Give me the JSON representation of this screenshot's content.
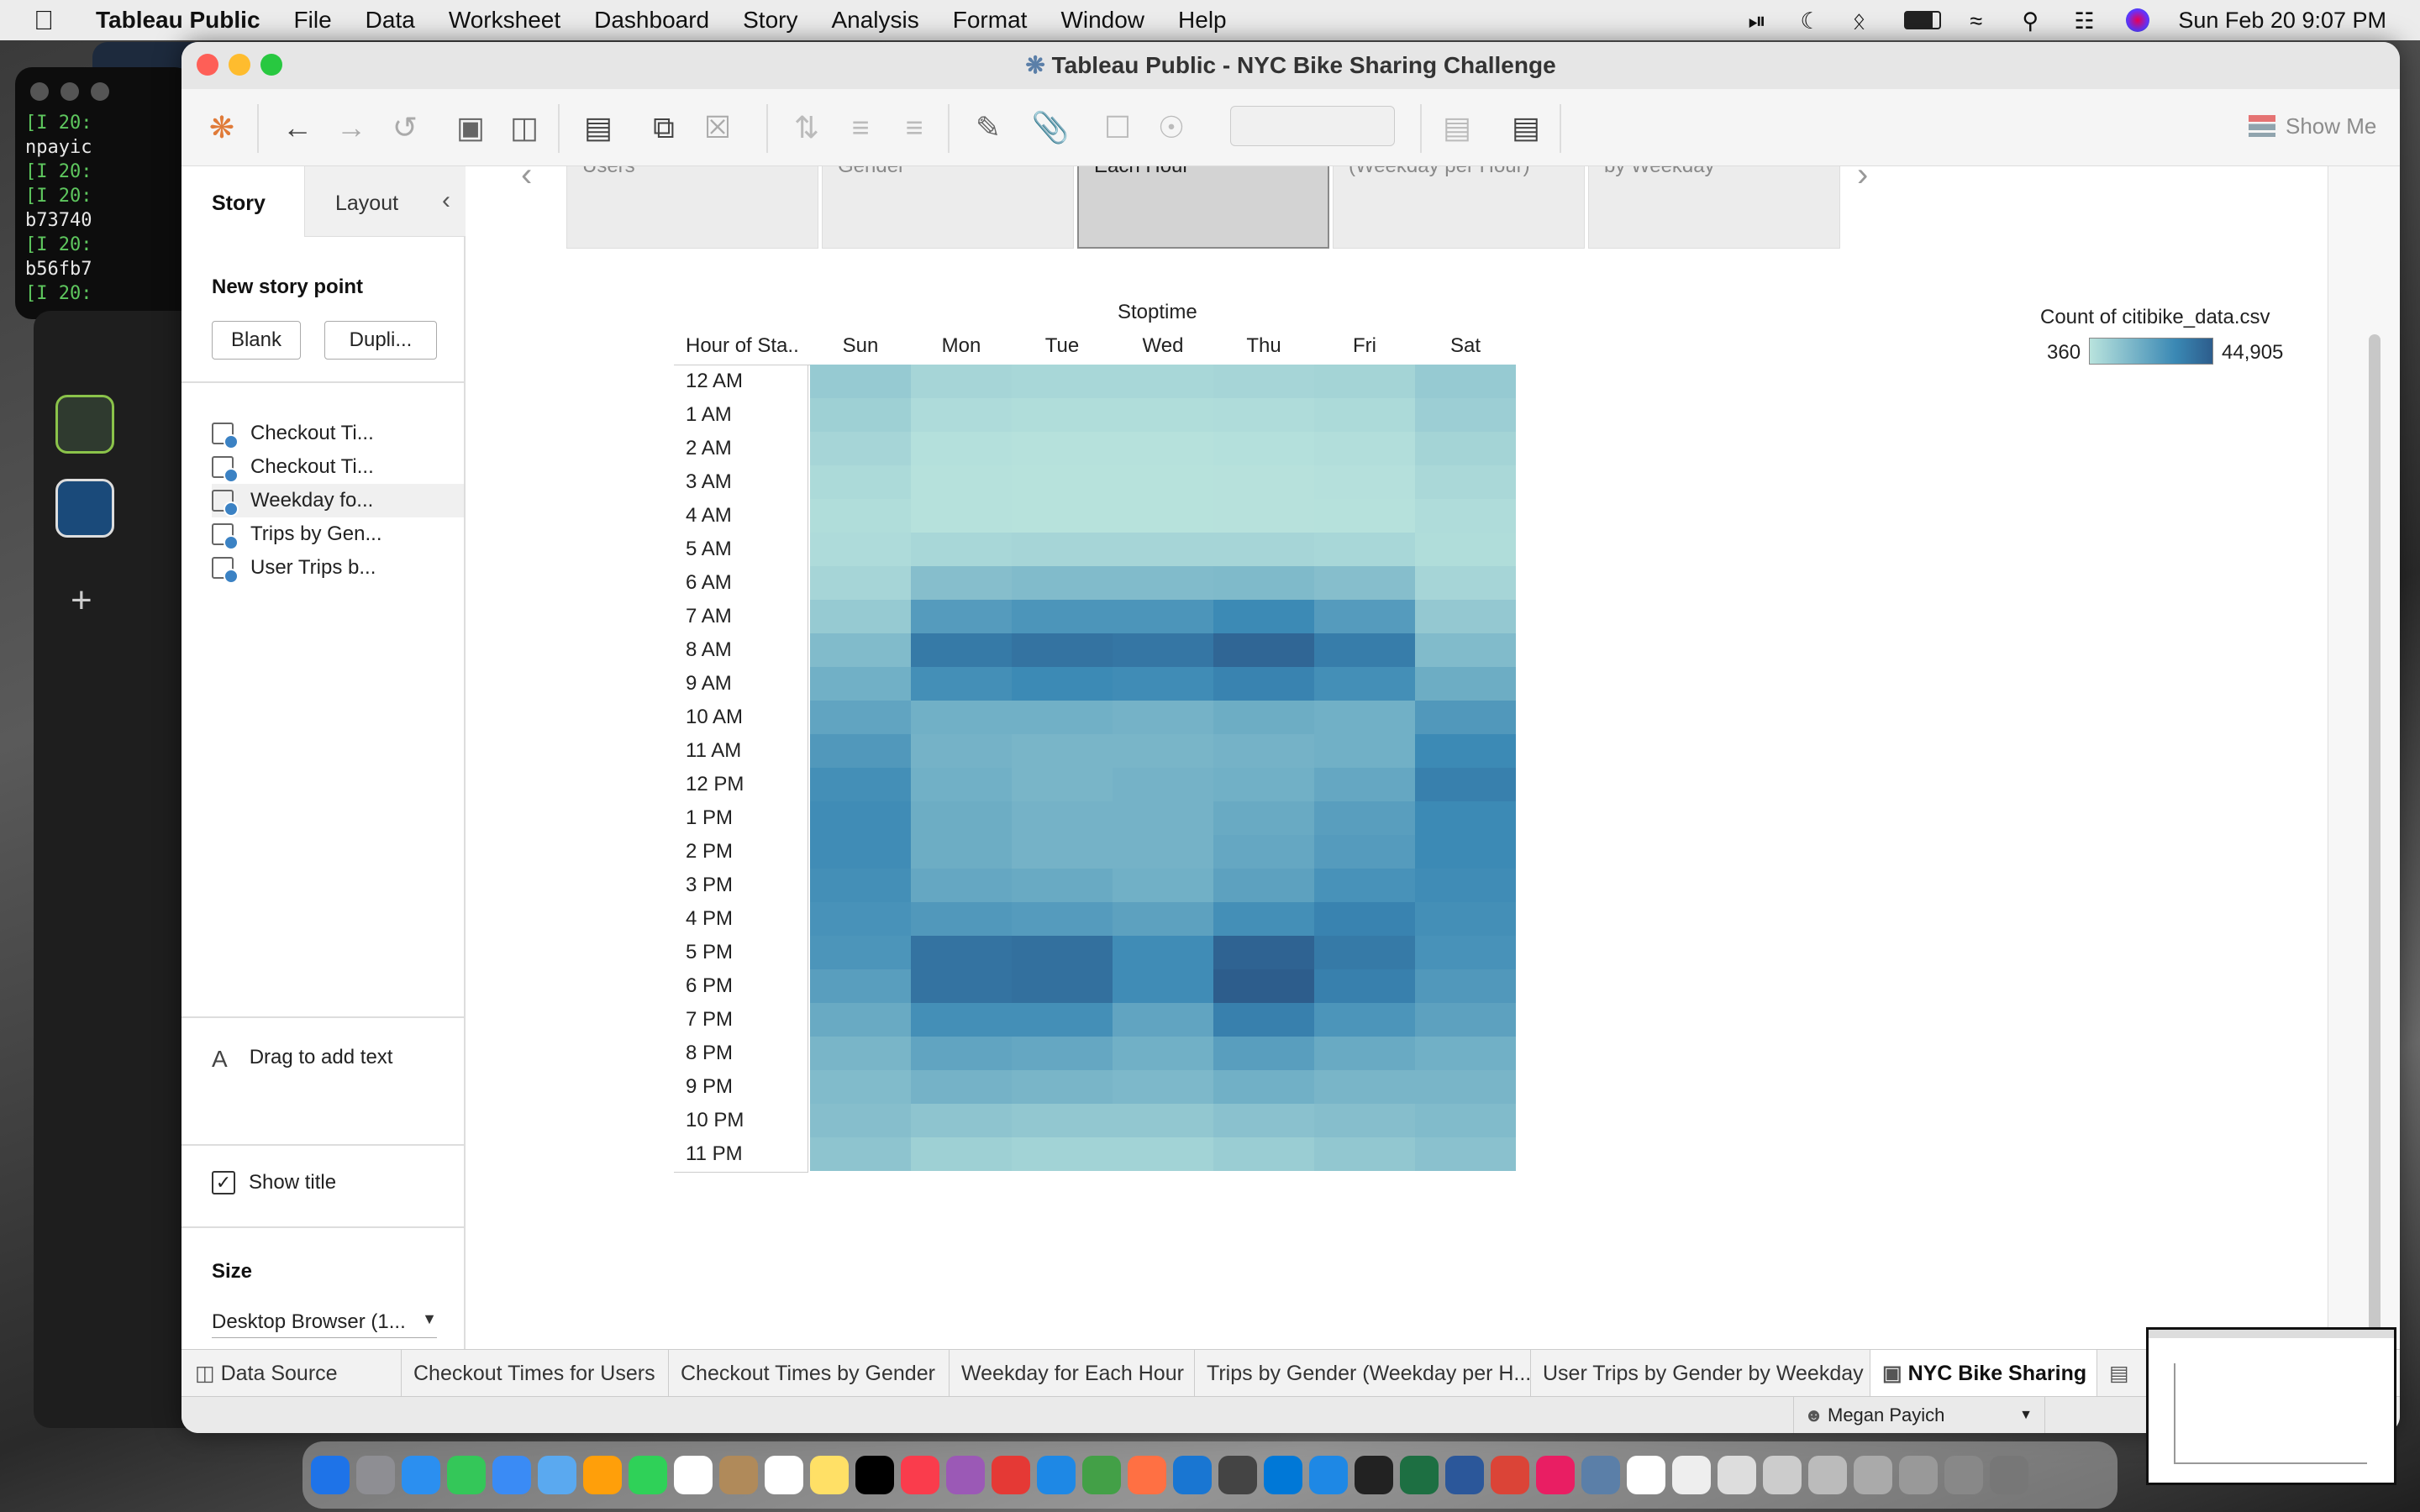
{
  "menubar": {
    "app": "Tableau Public",
    "items": [
      "File",
      "Data",
      "Worksheet",
      "Dashboard",
      "Story",
      "Analysis",
      "Format",
      "Window",
      "Help"
    ],
    "clock": "Sun Feb 20  9:07 PM"
  },
  "background": {
    "terminal_lines": [
      "[I 20:",
      "npayic",
      "[I 20:",
      "[I 20:",
      "b73740",
      "[I 20:",
      "b56fb7",
      "[I 20:"
    ]
  },
  "window": {
    "title": "Tableau Public - NYC Bike Sharing Challenge"
  },
  "toolbar": {
    "show_me": "Show Me"
  },
  "story_pane": {
    "tab_story": "Story",
    "tab_layout": "Layout",
    "new_story_point": "New story point",
    "btn_blank": "Blank",
    "btn_duplicate": "Dupli...",
    "sheets": [
      "Checkout Ti...",
      "Checkout Ti...",
      "Weekday fo...",
      "Trips by Gen...",
      "User Trips b..."
    ],
    "drag_text": "Drag to add text",
    "show_title": "Show title",
    "size_label": "Size",
    "size_value": "Desktop Browser (1..."
  },
  "story_points": [
    "Users",
    "Gender",
    "Each Hour",
    "(Weekday per Hour)",
    "by Weekday"
  ],
  "heatmap": {
    "col_title": "Stoptime",
    "row_header": "Hour of Sta..",
    "legend_title": "Count of citibike_data.csv",
    "legend_min": "360",
    "legend_max": "44,905"
  },
  "chart_data": {
    "type": "heatmap",
    "title": "",
    "xlabel": "Stoptime",
    "ylabel": "Hour of Sta..",
    "x": [
      "Sun",
      "Mon",
      "Tue",
      "Wed",
      "Thu",
      "Fri",
      "Sat"
    ],
    "y": [
      "12 AM",
      "1 AM",
      "2 AM",
      "3 AM",
      "4 AM",
      "5 AM",
      "6 AM",
      "7 AM",
      "8 AM",
      "9 AM",
      "10 AM",
      "11 AM",
      "12 PM",
      "1 PM",
      "2 PM",
      "3 PM",
      "4 PM",
      "5 PM",
      "6 PM",
      "7 PM",
      "8 PM",
      "9 PM",
      "10 PM",
      "11 PM"
    ],
    "colorbar": {
      "min": 360,
      "max": 44905,
      "label": "Count of citibike_data.csv"
    },
    "colors": {
      "low": "#b9e3dd",
      "mid": "#3a88b4",
      "high": "#2d5d8c"
    },
    "values": [
      [
        9000,
        5000,
        4500,
        4500,
        5000,
        5500,
        9000
      ],
      [
        7000,
        3000,
        2500,
        2500,
        2800,
        3500,
        7500
      ],
      [
        5000,
        1500,
        1200,
        1200,
        1500,
        2000,
        5500
      ],
      [
        3500,
        1000,
        800,
        800,
        900,
        1300,
        4000
      ],
      [
        2500,
        1000,
        800,
        800,
        900,
        1200,
        2800
      ],
      [
        3000,
        4500,
        5000,
        5000,
        5000,
        4500,
        2500
      ],
      [
        5000,
        13000,
        14000,
        14000,
        14500,
        13000,
        5000
      ],
      [
        9000,
        25000,
        27000,
        27000,
        31000,
        25000,
        9500
      ],
      [
        14000,
        36000,
        38000,
        37000,
        42000,
        35000,
        14000
      ],
      [
        18000,
        29000,
        31000,
        30000,
        33000,
        29000,
        19000
      ],
      [
        22000,
        18000,
        18000,
        17000,
        19000,
        18000,
        26000
      ],
      [
        26000,
        17000,
        16000,
        16000,
        17000,
        18000,
        31000
      ],
      [
        29000,
        18000,
        16000,
        17000,
        18000,
        21000,
        34000
      ],
      [
        30000,
        19000,
        17000,
        17000,
        20000,
        24000,
        31000
      ],
      [
        30000,
        19000,
        17000,
        17000,
        21000,
        25000,
        31000
      ],
      [
        29000,
        21000,
        20000,
        18000,
        23000,
        28000,
        30000
      ],
      [
        28000,
        26000,
        25000,
        23000,
        29000,
        33000,
        29000
      ],
      [
        27000,
        38000,
        39000,
        30000,
        43000,
        36000,
        28000
      ],
      [
        24000,
        38000,
        39000,
        30000,
        44905,
        34000,
        26000
      ],
      [
        20000,
        29000,
        29000,
        22000,
        34000,
        27000,
        23000
      ],
      [
        16000,
        22000,
        21000,
        18000,
        24000,
        20000,
        18000
      ],
      [
        14000,
        17000,
        16000,
        15000,
        18000,
        16000,
        16000
      ],
      [
        13000,
        11000,
        10000,
        10000,
        12000,
        13000,
        14000
      ],
      [
        11000,
        7000,
        6000,
        6000,
        8000,
        10000,
        12000
      ]
    ]
  },
  "bottom_tabs": {
    "data_source": "Data Source",
    "sheets": [
      "Checkout Times for Users",
      "Checkout Times by Gender",
      "Weekday for Each Hour",
      "Trips by Gender (Weekday per H...",
      "User Trips by Gender by Weekday"
    ],
    "story": "NYC Bike Sharing"
  },
  "status": {
    "user": "Megan Payich"
  }
}
